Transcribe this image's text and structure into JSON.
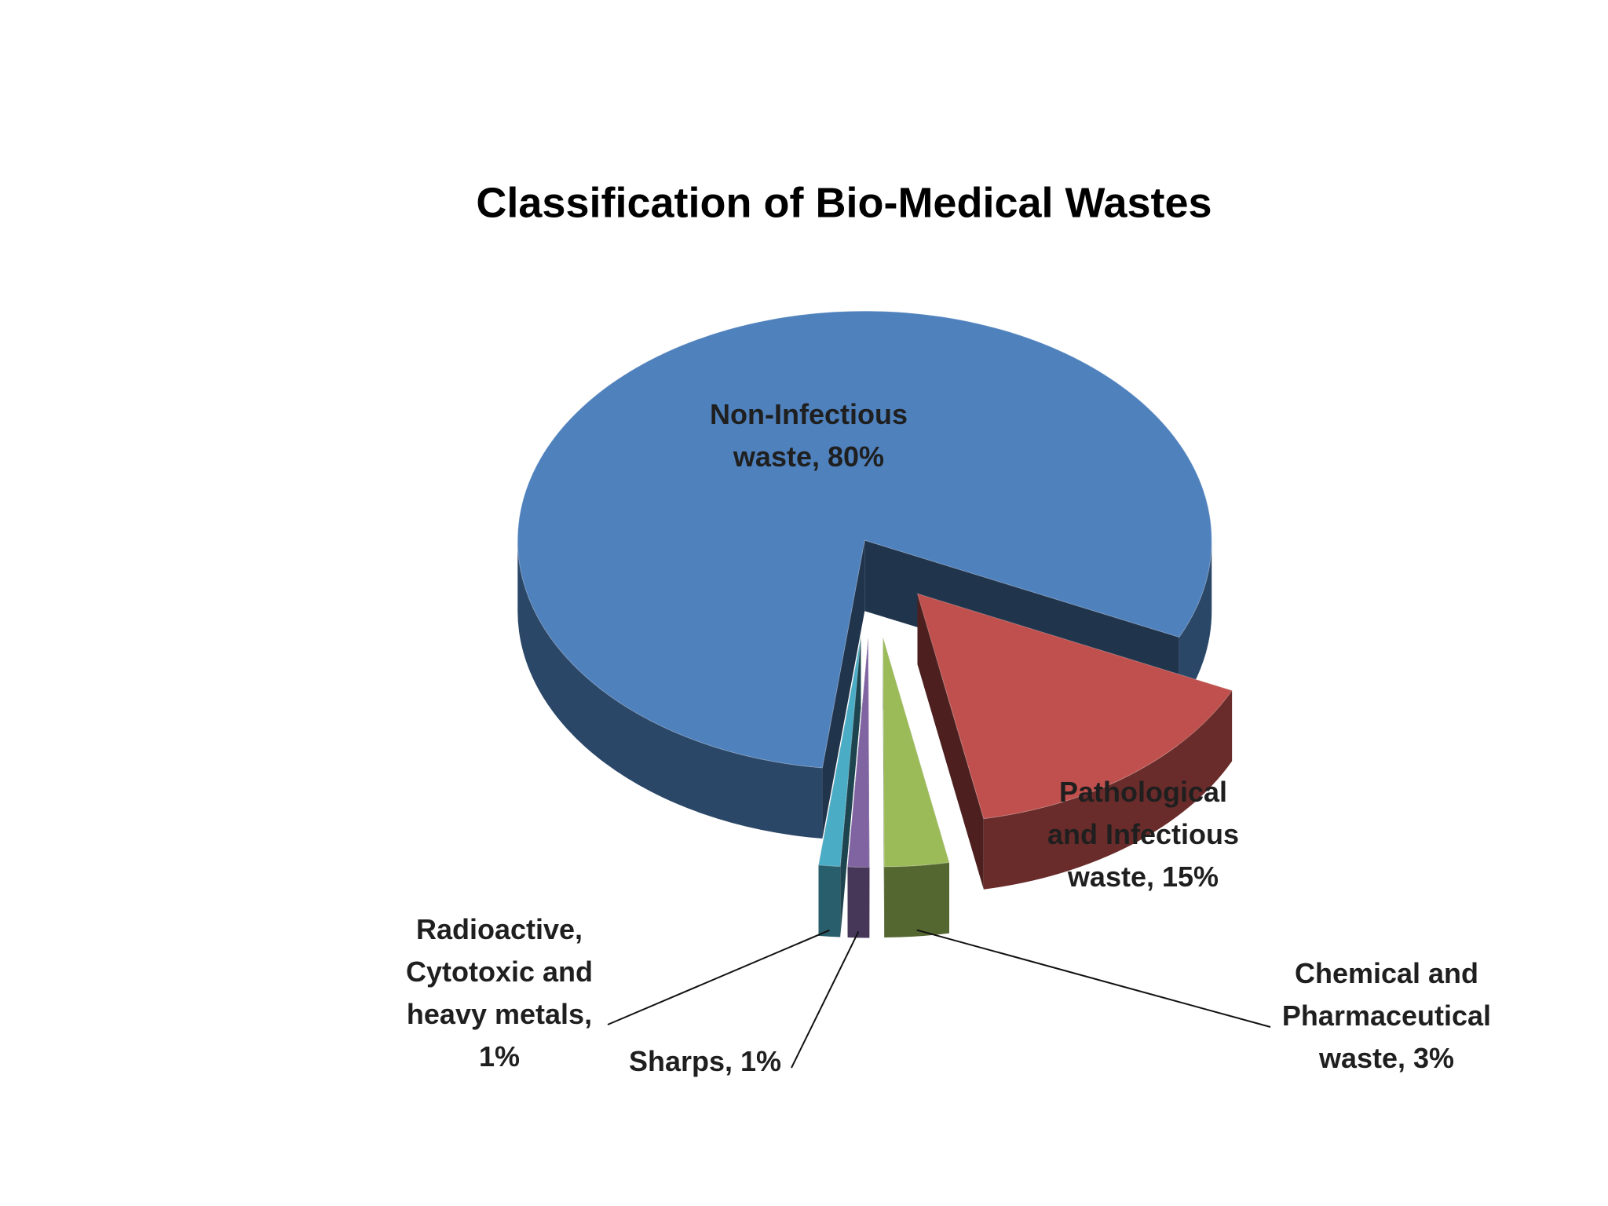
{
  "chart_data": {
    "type": "pie",
    "title": "Classification of Bio-Medical Wastes",
    "categories": [
      "Non-Infectious waste,",
      "Pathological and Infectious waste,",
      "Chemical and Pharmaceutical waste,",
      "Sharps,",
      "Radioactive, Cytotoxic and heavy metals,"
    ],
    "values": [
      80,
      15,
      3,
      1,
      1
    ],
    "value_labels": [
      "80%",
      "15%",
      "3%",
      "1%",
      "1%"
    ],
    "colors": [
      "#4f81bd",
      "#c0504d",
      "#9bbb59",
      "#8064a2",
      "#4bacc6"
    ]
  }
}
